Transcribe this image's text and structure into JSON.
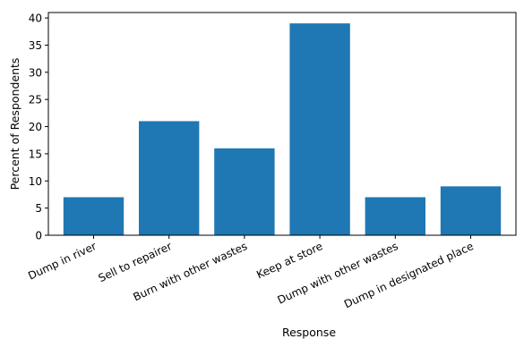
{
  "chart_data": {
    "type": "bar",
    "title": "",
    "xlabel": "Response",
    "ylabel": "Percent of Respondents",
    "categories": [
      "Dump in river",
      "Sell to repairer",
      "Burn with other wastes",
      "Keep at store",
      "Dump with other wastes",
      "Dump in designated place"
    ],
    "values": [
      7,
      21,
      16,
      39,
      7,
      9
    ],
    "ylim": [
      0,
      41
    ],
    "yticks": [
      0,
      5,
      10,
      15,
      20,
      25,
      30,
      35,
      40
    ],
    "bar_color": "#1f77b4",
    "grid": false,
    "legend": "none"
  }
}
